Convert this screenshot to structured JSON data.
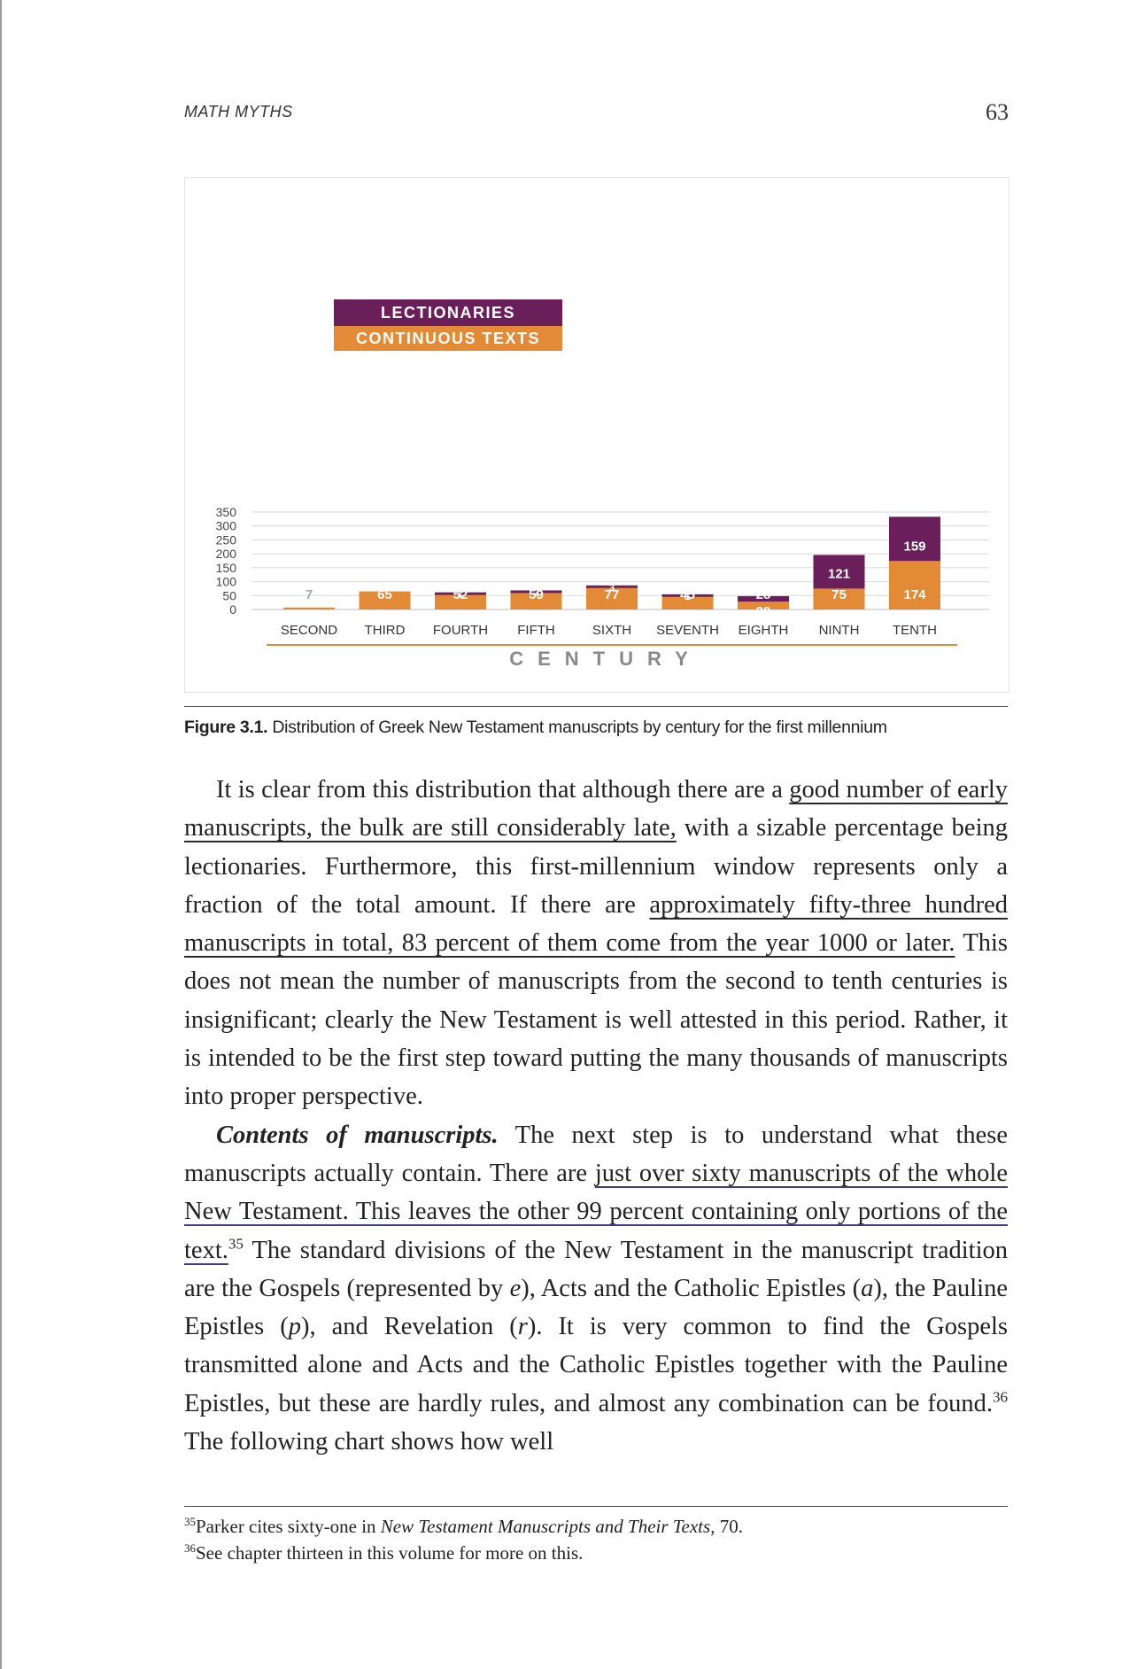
{
  "header": {
    "running_head": "MATH MYTHS",
    "page_number": "63"
  },
  "chart_data": {
    "type": "bar",
    "stacked": true,
    "categories": [
      "SECOND",
      "THIRD",
      "FOURTH",
      "FIFTH",
      "SIXTH",
      "SEVENTH",
      "EIGHTH",
      "NINTH",
      "TENTH"
    ],
    "series": [
      {
        "name": "CONTINUOUS TEXTS",
        "color": "#e38a37",
        "values": [
          7,
          65,
          52,
          59,
          77,
          45,
          28,
          75,
          174
        ]
      },
      {
        "name": "LECTIONARIES",
        "color": "#6a1f5b",
        "values": [
          0,
          0,
          1,
          2,
          3,
          1,
          20,
          121,
          159
        ]
      }
    ],
    "segment_labels": {
      "continuous": [
        "7",
        "65",
        "52",
        "59",
        "77",
        "45",
        "28",
        "75",
        "174"
      ],
      "lectionaries": [
        "",
        "",
        "1",
        "2",
        "3",
        "1",
        "20",
        "121",
        "159"
      ]
    },
    "y_ticks": [
      "0",
      "50",
      "100",
      "150",
      "200",
      "250",
      "300",
      "350"
    ],
    "ylim": [
      0,
      350
    ],
    "xlabel": "CENTURY",
    "ylabel": "",
    "title": "",
    "grid": true,
    "legend_placement": "top-left"
  },
  "caption": {
    "label": "Figure 3.1.",
    "text": " Distribution of Greek New Testament manuscripts by century for the first millennium"
  },
  "body": {
    "p1_a": "It is clear from this distribution that although there are a ",
    "p1_hl1": "good number of early manuscripts, the bulk are still considerably late,",
    "p1_b": " with a sizable percentage being lectionaries. Furthermore, this first-millennium window represents only a fraction of the total amount. If there are ",
    "p1_hl2": "approximately fifty-three hundred manuscripts in total, 83 percent of them come from the year 1000 or later.",
    "p1_c": " This does not mean the number of manuscripts from the second to tenth centuries is insignificant; clearly the New Testament is well attested in this period. Rather, it is intended to be the first step toward putting the many thousands of manuscripts into proper perspective.",
    "p2_runin": "Contents of manuscripts.",
    "p2_a": " The next step is to understand what these manuscripts actually contain. There are ",
    "p2_hl1": "just over sixty manuscripts of the whole New Testament. This leaves the other 99 percent containing only portions of the text.",
    "p2_fn35": "35",
    "p2_b": " The standard divisions of the New Testament in the manuscript tradition are the Gospels (represented by ",
    "p2_e": "e",
    "p2_c": "), Acts and the Catholic Epistles (",
    "p2_a_letter": "a",
    "p2_d": "), the Pauline Epistles (",
    "p2_p": "p",
    "p2_e2": "), and Revelation (",
    "p2_r": "r",
    "p2_f": "). It is very common to find the Gospels transmitted alone and Acts and the Catholic Epistles together with the Pauline Epistles, but these are hardly rules, and almost any combination can be found.",
    "p2_fn36": "36",
    "p2_g": " The following chart shows how well"
  },
  "footnotes": {
    "fn35_num": "35",
    "fn35_a": "Parker cites sixty-one in ",
    "fn35_title": "New Testament Manuscripts and Their Texts",
    "fn35_b": ", 70.",
    "fn36_num": "36",
    "fn36_text": "See chapter thirteen in this volume for more on this."
  }
}
